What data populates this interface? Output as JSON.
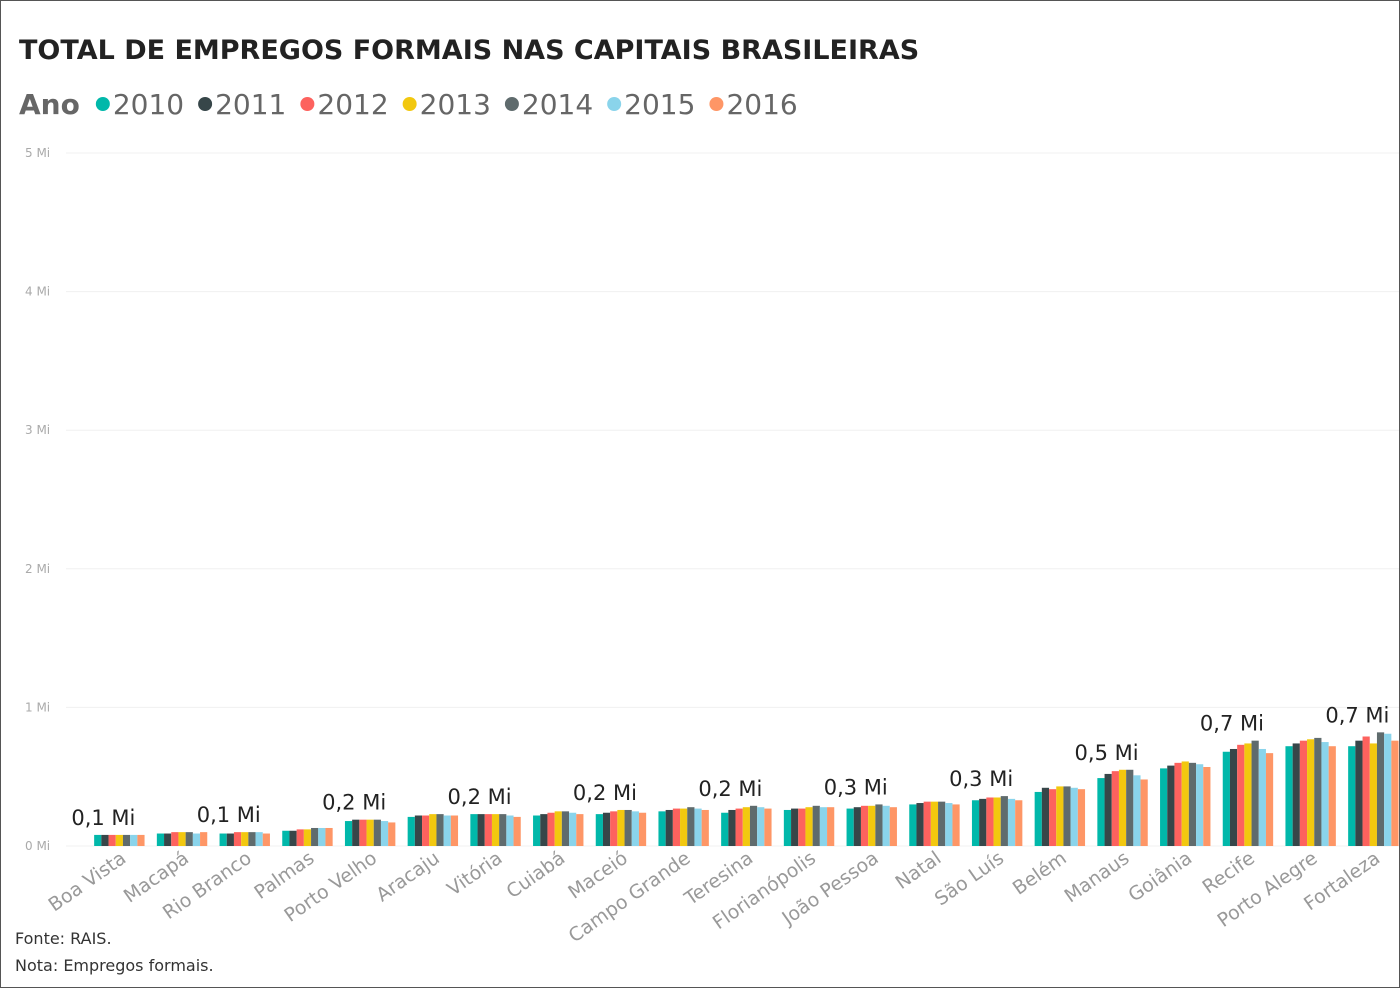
{
  "chart_data": {
    "type": "bar",
    "title": "TOTAL DE EMPREGOS FORMAIS NAS CAPITAIS BRASILEIRAS",
    "legend_title": "Ano",
    "notes": [
      "Fonte: RAIS.",
      "Nota: Empregos formais."
    ],
    "categories": [
      "Boa Vista",
      "Macapá",
      "Rio Branco",
      "Palmas",
      "Porto Velho",
      "Aracaju",
      "Vitória",
      "Cuiabá",
      "Maceió",
      "Campo Grande",
      "Teresina",
      "Florianópolis",
      "João Pessoa",
      "Natal",
      "São Luís",
      "Belém",
      "Manaus",
      "Goiânia",
      "Recife",
      "Porto Alegre",
      "Fortaleza"
    ],
    "ylim": [
      0,
      5
    ],
    "yticks": [
      {
        "value": 0,
        "label": "0 Mi"
      },
      {
        "value": 1,
        "label": "1 Mi"
      },
      {
        "value": 2,
        "label": "2 Mi"
      },
      {
        "value": 3,
        "label": "3 Mi"
      },
      {
        "value": 4,
        "label": "4 Mi"
      },
      {
        "value": 5,
        "label": "5 Mi"
      }
    ],
    "grid": true,
    "series": [
      {
        "name": "2010",
        "color": "#01B8AA",
        "values": [
          0.08,
          0.09,
          0.09,
          0.11,
          0.18,
          0.21,
          0.23,
          0.22,
          0.23,
          0.25,
          0.24,
          0.26,
          0.27,
          0.3,
          0.33,
          0.39,
          0.49,
          0.56,
          0.68,
          0.72,
          0.72
        ],
        "value_labels": [
          "0,1 Mi",
          null,
          "0,1 Mi",
          null,
          "0,2 Mi",
          null,
          "0,2 Mi",
          null,
          "0,2 Mi",
          null,
          "0,2 Mi",
          null,
          "0,3 Mi",
          null,
          "0,3 Mi",
          null,
          "0,5 Mi",
          null,
          "0,7 Mi",
          null,
          "0,7 Mi"
        ]
      },
      {
        "name": "2011",
        "color": "#374649",
        "values": [
          0.08,
          0.09,
          0.09,
          0.11,
          0.19,
          0.22,
          0.23,
          0.23,
          0.24,
          0.26,
          0.26,
          0.27,
          0.28,
          0.31,
          0.34,
          0.42,
          0.52,
          0.58,
          0.7,
          0.74,
          0.76
        ]
      },
      {
        "name": "2012",
        "color": "#FD625E",
        "values": [
          0.08,
          0.1,
          0.1,
          0.12,
          0.19,
          0.22,
          0.23,
          0.24,
          0.25,
          0.27,
          0.27,
          0.27,
          0.29,
          0.32,
          0.35,
          0.41,
          0.54,
          0.6,
          0.73,
          0.76,
          0.79
        ]
      },
      {
        "name": "2013",
        "color": "#F2C80F",
        "values": [
          0.08,
          0.1,
          0.1,
          0.12,
          0.19,
          0.23,
          0.23,
          0.25,
          0.26,
          0.27,
          0.28,
          0.28,
          0.29,
          0.32,
          0.35,
          0.43,
          0.55,
          0.61,
          0.74,
          0.77,
          0.74
        ]
      },
      {
        "name": "2014",
        "color": "#5F6B6D",
        "values": [
          0.08,
          0.1,
          0.1,
          0.13,
          0.19,
          0.23,
          0.23,
          0.25,
          0.26,
          0.28,
          0.29,
          0.29,
          0.3,
          0.32,
          0.36,
          0.43,
          0.55,
          0.6,
          0.76,
          0.78,
          0.82
        ]
      },
      {
        "name": "2015",
        "color": "#8AD4EB",
        "values": [
          0.08,
          0.09,
          0.1,
          0.13,
          0.18,
          0.22,
          0.22,
          0.24,
          0.25,
          0.27,
          0.28,
          0.28,
          0.29,
          0.31,
          0.34,
          0.42,
          0.51,
          0.59,
          0.7,
          0.75,
          0.81
        ]
      },
      {
        "name": "2016",
        "color": "#FE9666",
        "values": [
          0.08,
          0.1,
          0.09,
          0.13,
          0.17,
          0.22,
          0.21,
          0.23,
          0.24,
          0.26,
          0.27,
          0.28,
          0.28,
          0.3,
          0.33,
          0.41,
          0.48,
          0.57,
          0.67,
          0.72,
          0.76
        ]
      }
    ]
  }
}
